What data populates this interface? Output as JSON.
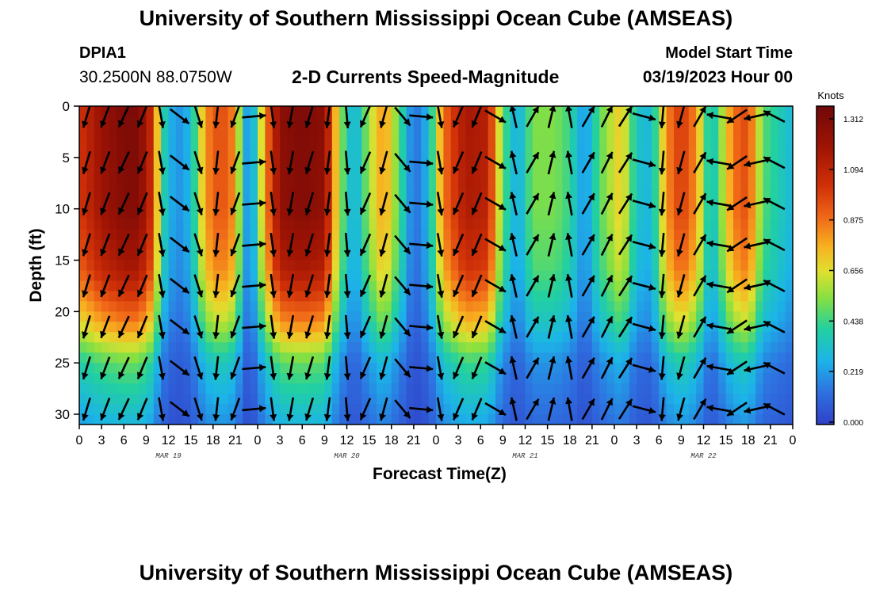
{
  "titles": {
    "main": "University of Southern Mississippi Ocean Cube (AMSEAS)",
    "repeat": "University of Southern Mississippi Ocean Cube (AMSEAS)"
  },
  "station": {
    "id": "DPIA1",
    "location": "30.2500N  88.0750W"
  },
  "variable": "2-D Currents Speed-Magnitude",
  "model_start": {
    "label": "Model Start Time",
    "value": "03/19/2023 Hour 00"
  },
  "chart_data": {
    "type": "heatmap",
    "title": "2-D Currents Speed-Magnitude",
    "xlabel": "Forecast Time(Z)",
    "ylabel": "Depth (ft)",
    "x_tick_labels": [
      "0",
      "3",
      "6",
      "9",
      "12",
      "15",
      "18",
      "21",
      "0",
      "3",
      "6",
      "9",
      "12",
      "15",
      "18",
      "21",
      "0",
      "3",
      "6",
      "9",
      "12",
      "15",
      "18",
      "21",
      "0",
      "3",
      "6",
      "9",
      "12",
      "15",
      "18",
      "21",
      "0"
    ],
    "x_range_hours": [
      0,
      96
    ],
    "date_labels": [
      {
        "label": "MAR 19",
        "hour": 12
      },
      {
        "label": "MAR 20",
        "hour": 36
      },
      {
        "label": "MAR 21",
        "hour": 60
      },
      {
        "label": "MAR 22",
        "hour": 84
      }
    ],
    "y_ticks": [
      0,
      5,
      10,
      15,
      20,
      25,
      30
    ],
    "y_range_ft": [
      0,
      31
    ],
    "colorbar": {
      "unit": "Knots",
      "ticks": [
        "1.312",
        "1.094",
        "0.875",
        "0.656",
        "0.438",
        "0.219",
        "0.000"
      ],
      "range": [
        0,
        1.4
      ]
    },
    "time_profile": [
      {
        "hour": 0,
        "speed": 1.05,
        "dir": 195
      },
      {
        "hour": 3,
        "speed": 1.25,
        "dir": 200
      },
      {
        "hour": 6,
        "speed": 1.35,
        "dir": 205
      },
      {
        "hour": 8,
        "speed": 1.35,
        "dir": 205
      },
      {
        "hour": 10,
        "speed": 1.05,
        "dir": 195
      },
      {
        "hour": 11,
        "speed": 0.45,
        "dir": 170
      },
      {
        "hour": 13,
        "speed": 0.2,
        "dir": 120
      },
      {
        "hour": 15,
        "speed": 0.3,
        "dir": 150
      },
      {
        "hour": 17,
        "speed": 0.85,
        "dir": 175
      },
      {
        "hour": 19,
        "speed": 1.0,
        "dir": 190
      },
      {
        "hour": 21,
        "speed": 0.85,
        "dir": 200
      },
      {
        "hour": 22,
        "speed": 0.35,
        "dir": 230
      },
      {
        "hour": 23,
        "speed": 0.15,
        "dir": 60
      },
      {
        "hour": 25,
        "speed": 0.85,
        "dir": 160
      },
      {
        "hour": 27,
        "speed": 1.3,
        "dir": 185
      },
      {
        "hour": 30,
        "speed": 1.35,
        "dir": 195
      },
      {
        "hour": 33,
        "speed": 1.3,
        "dir": 200
      },
      {
        "hour": 35,
        "speed": 0.6,
        "dir": 150
      },
      {
        "hour": 37,
        "speed": 0.25,
        "dir": 200
      },
      {
        "hour": 39,
        "speed": 0.6,
        "dir": 205
      },
      {
        "hour": 41,
        "speed": 0.85,
        "dir": 195
      },
      {
        "hour": 43,
        "speed": 0.5,
        "dir": 150
      },
      {
        "hour": 45,
        "speed": 0.12,
        "dir": 110
      },
      {
        "hour": 47,
        "speed": 0.3,
        "dir": 80
      },
      {
        "hour": 49,
        "speed": 0.9,
        "dir": 200
      },
      {
        "hour": 52,
        "speed": 1.2,
        "dir": 205
      },
      {
        "hour": 55,
        "speed": 1.15,
        "dir": 200
      },
      {
        "hour": 57,
        "speed": 0.5,
        "dir": 40
      },
      {
        "hour": 59,
        "speed": 0.25,
        "dir": 330
      },
      {
        "hour": 61,
        "speed": 0.55,
        "dir": 30
      },
      {
        "hour": 64,
        "speed": 0.55,
        "dir": 10
      },
      {
        "hour": 66,
        "speed": 0.45,
        "dir": 350
      },
      {
        "hour": 68,
        "speed": 0.2,
        "dir": 30
      },
      {
        "hour": 70,
        "speed": 0.5,
        "dir": 30
      },
      {
        "hour": 73,
        "speed": 0.75,
        "dir": 20
      },
      {
        "hour": 75,
        "speed": 0.35,
        "dir": 70
      },
      {
        "hour": 77,
        "speed": 0.3,
        "dir": 140
      },
      {
        "hour": 79,
        "speed": 0.85,
        "dir": 200
      },
      {
        "hour": 81,
        "speed": 1.05,
        "dir": 195
      },
      {
        "hour": 83,
        "speed": 0.85,
        "dir": 60
      },
      {
        "hour": 85,
        "speed": 0.3,
        "dir": 300
      },
      {
        "hour": 88,
        "speed": 0.9,
        "dir": 240
      },
      {
        "hour": 90,
        "speed": 1.0,
        "dir": 225
      },
      {
        "hour": 92,
        "speed": 0.5,
        "dir": 290
      },
      {
        "hour": 94,
        "speed": 0.4,
        "dir": 300
      },
      {
        "hour": 96,
        "speed": 0.3,
        "dir": 300
      }
    ],
    "depth_factor": [
      {
        "depth": 0,
        "factor": 1.0
      },
      {
        "depth": 10,
        "factor": 0.98
      },
      {
        "depth": 16,
        "factor": 0.88
      },
      {
        "depth": 21,
        "factor": 0.65
      },
      {
        "depth": 25,
        "factor": 0.38
      },
      {
        "depth": 31,
        "factor": 0.22
      }
    ],
    "vector_rows_ft": [
      1,
      5.5,
      9.5,
      13.5,
      17.5,
      21.5,
      25.5,
      29.5
    ],
    "vector_step_hours": 2.5
  }
}
